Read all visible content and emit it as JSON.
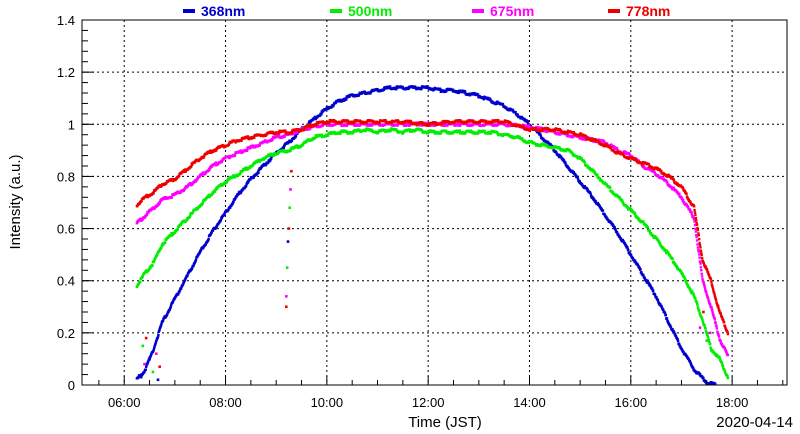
{
  "chart_data": {
    "type": "scatter",
    "title": "",
    "xlabel": "Time (JST)",
    "ylabel": "Intensity (a.u.)",
    "date_label": "2020-04-14",
    "xlim": [
      "05:10",
      "19:05"
    ],
    "ylim": [
      0,
      1.4
    ],
    "x_ticks": [
      "06:00",
      "08:00",
      "10:00",
      "12:00",
      "14:00",
      "16:00",
      "18:00"
    ],
    "y_ticks": [
      "0",
      "0.2",
      "0.4",
      "0.6",
      "0.8",
      "1",
      "1.2",
      "1.4"
    ],
    "grid": true,
    "legend_position": "top",
    "series": [
      {
        "name": "368nm",
        "color": "#0000cc",
        "points": [
          [
            "06:15",
            0.02
          ],
          [
            "06:25",
            0.06
          ],
          [
            "06:35",
            0.14
          ],
          [
            "06:45",
            0.24
          ],
          [
            "07:00",
            0.33
          ],
          [
            "07:15",
            0.42
          ],
          [
            "07:30",
            0.51
          ],
          [
            "07:45",
            0.59
          ],
          [
            "08:00",
            0.66
          ],
          [
            "08:15",
            0.73
          ],
          [
            "08:30",
            0.79
          ],
          [
            "08:45",
            0.84
          ],
          [
            "09:00",
            0.89
          ],
          [
            "09:15",
            0.93
          ],
          [
            "09:30",
            0.98
          ],
          [
            "09:45",
            1.02
          ],
          [
            "10:00",
            1.06
          ],
          [
            "10:15",
            1.09
          ],
          [
            "10:30",
            1.11
          ],
          [
            "10:45",
            1.12
          ],
          [
            "11:00",
            1.13
          ],
          [
            "11:15",
            1.14
          ],
          [
            "11:30",
            1.14
          ],
          [
            "11:45",
            1.14
          ],
          [
            "12:00",
            1.14
          ],
          [
            "12:15",
            1.13
          ],
          [
            "12:30",
            1.13
          ],
          [
            "12:45",
            1.12
          ],
          [
            "13:00",
            1.11
          ],
          [
            "13:15",
            1.09
          ],
          [
            "13:30",
            1.07
          ],
          [
            "13:45",
            1.04
          ],
          [
            "14:00",
            1.0
          ],
          [
            "14:15",
            0.95
          ],
          [
            "14:30",
            0.9
          ],
          [
            "14:45",
            0.84
          ],
          [
            "15:00",
            0.78
          ],
          [
            "15:15",
            0.72
          ],
          [
            "15:30",
            0.65
          ],
          [
            "15:45",
            0.58
          ],
          [
            "16:00",
            0.5
          ],
          [
            "16:15",
            0.42
          ],
          [
            "16:30",
            0.34
          ],
          [
            "16:45",
            0.24
          ],
          [
            "17:00",
            0.14
          ],
          [
            "17:15",
            0.06
          ],
          [
            "17:30",
            0.01
          ],
          [
            "17:40",
            0.0
          ]
        ]
      },
      {
        "name": "500nm",
        "color": "#00ee00",
        "points": [
          [
            "06:15",
            0.38
          ],
          [
            "06:25",
            0.43
          ],
          [
            "06:35",
            0.47
          ],
          [
            "06:45",
            0.54
          ],
          [
            "07:00",
            0.59
          ],
          [
            "07:15",
            0.64
          ],
          [
            "07:30",
            0.69
          ],
          [
            "07:45",
            0.74
          ],
          [
            "08:00",
            0.78
          ],
          [
            "08:15",
            0.81
          ],
          [
            "08:30",
            0.84
          ],
          [
            "08:45",
            0.87
          ],
          [
            "09:00",
            0.89
          ],
          [
            "09:15",
            0.9
          ],
          [
            "09:30",
            0.92
          ],
          [
            "09:45",
            0.95
          ],
          [
            "10:00",
            0.96
          ],
          [
            "10:15",
            0.97
          ],
          [
            "10:30",
            0.97
          ],
          [
            "10:45",
            0.98
          ],
          [
            "11:00",
            0.97
          ],
          [
            "11:15",
            0.98
          ],
          [
            "11:30",
            0.97
          ],
          [
            "11:45",
            0.98
          ],
          [
            "12:00",
            0.97
          ],
          [
            "12:15",
            0.97
          ],
          [
            "12:30",
            0.97
          ],
          [
            "12:45",
            0.97
          ],
          [
            "13:00",
            0.97
          ],
          [
            "13:15",
            0.97
          ],
          [
            "13:30",
            0.96
          ],
          [
            "13:45",
            0.95
          ],
          [
            "14:00",
            0.93
          ],
          [
            "14:15",
            0.92
          ],
          [
            "14:30",
            0.91
          ],
          [
            "14:45",
            0.9
          ],
          [
            "15:00",
            0.87
          ],
          [
            "15:15",
            0.82
          ],
          [
            "15:30",
            0.77
          ],
          [
            "15:45",
            0.72
          ],
          [
            "16:00",
            0.67
          ],
          [
            "16:15",
            0.62
          ],
          [
            "16:30",
            0.56
          ],
          [
            "16:45",
            0.5
          ],
          [
            "17:00",
            0.43
          ],
          [
            "17:15",
            0.34
          ],
          [
            "17:25",
            0.25
          ],
          [
            "17:35",
            0.14
          ],
          [
            "17:45",
            0.1
          ],
          [
            "17:55",
            0.03
          ]
        ]
      },
      {
        "name": "675nm",
        "color": "#ff00ff",
        "points": [
          [
            "06:15",
            0.62
          ],
          [
            "06:25",
            0.65
          ],
          [
            "06:35",
            0.68
          ],
          [
            "06:45",
            0.71
          ],
          [
            "07:00",
            0.73
          ],
          [
            "07:15",
            0.76
          ],
          [
            "07:30",
            0.8
          ],
          [
            "07:45",
            0.84
          ],
          [
            "08:00",
            0.87
          ],
          [
            "08:15",
            0.89
          ],
          [
            "08:30",
            0.91
          ],
          [
            "08:45",
            0.93
          ],
          [
            "09:00",
            0.95
          ],
          [
            "09:15",
            0.96
          ],
          [
            "09:30",
            0.98
          ],
          [
            "09:45",
            0.99
          ],
          [
            "10:00",
            1.0
          ],
          [
            "10:30",
            1.0
          ],
          [
            "11:00",
            1.0
          ],
          [
            "11:30",
            1.0
          ],
          [
            "12:00",
            1.0
          ],
          [
            "12:30",
            1.0
          ],
          [
            "13:00",
            1.0
          ],
          [
            "13:30",
            1.0
          ],
          [
            "14:00",
            0.99
          ],
          [
            "14:15",
            0.98
          ],
          [
            "14:30",
            0.97
          ],
          [
            "14:45",
            0.96
          ],
          [
            "15:00",
            0.95
          ],
          [
            "15:15",
            0.94
          ],
          [
            "15:30",
            0.93
          ],
          [
            "15:45",
            0.9
          ],
          [
            "16:00",
            0.88
          ],
          [
            "16:15",
            0.84
          ],
          [
            "16:30",
            0.81
          ],
          [
            "16:45",
            0.77
          ],
          [
            "17:00",
            0.72
          ],
          [
            "17:15",
            0.64
          ],
          [
            "17:25",
            0.4
          ],
          [
            "17:35",
            0.3
          ],
          [
            "17:45",
            0.18
          ],
          [
            "17:55",
            0.11
          ]
        ]
      },
      {
        "name": "778nm",
        "color": "#ee0000",
        "points": [
          [
            "06:15",
            0.69
          ],
          [
            "06:25",
            0.72
          ],
          [
            "06:35",
            0.74
          ],
          [
            "06:45",
            0.77
          ],
          [
            "07:00",
            0.79
          ],
          [
            "07:15",
            0.83
          ],
          [
            "07:30",
            0.87
          ],
          [
            "07:45",
            0.9
          ],
          [
            "08:00",
            0.92
          ],
          [
            "08:15",
            0.94
          ],
          [
            "08:30",
            0.95
          ],
          [
            "08:45",
            0.96
          ],
          [
            "09:00",
            0.97
          ],
          [
            "09:15",
            0.97
          ],
          [
            "09:30",
            0.98
          ],
          [
            "09:45",
            1.0
          ],
          [
            "10:00",
            1.01
          ],
          [
            "10:30",
            1.01
          ],
          [
            "11:00",
            1.01
          ],
          [
            "11:30",
            1.01
          ],
          [
            "12:00",
            1.0
          ],
          [
            "12:30",
            1.01
          ],
          [
            "13:00",
            1.01
          ],
          [
            "13:30",
            1.01
          ],
          [
            "14:00",
            0.98
          ],
          [
            "14:15",
            0.98
          ],
          [
            "14:30",
            0.98
          ],
          [
            "14:45",
            0.97
          ],
          [
            "15:00",
            0.96
          ],
          [
            "15:15",
            0.94
          ],
          [
            "15:30",
            0.92
          ],
          [
            "15:45",
            0.89
          ],
          [
            "16:00",
            0.87
          ],
          [
            "16:15",
            0.85
          ],
          [
            "16:30",
            0.83
          ],
          [
            "16:45",
            0.8
          ],
          [
            "17:00",
            0.76
          ],
          [
            "17:15",
            0.68
          ],
          [
            "17:25",
            0.48
          ],
          [
            "17:35",
            0.4
          ],
          [
            "17:45",
            0.28
          ],
          [
            "17:55",
            0.2
          ]
        ]
      }
    ],
    "dropout_points": [
      [
        "06:20",
        0.03,
        "#0000cc"
      ],
      [
        "06:22",
        0.15,
        "#00ee00"
      ],
      [
        "06:24",
        0.08,
        "#ff00ff"
      ],
      [
        "06:26",
        0.18,
        "#ee0000"
      ],
      [
        "06:30",
        0.1,
        "#0000cc"
      ],
      [
        "06:34",
        0.05,
        "#00ee00"
      ],
      [
        "06:38",
        0.12,
        "#ff00ff"
      ],
      [
        "06:40",
        0.02,
        "#0000cc"
      ],
      [
        "06:42",
        0.07,
        "#ee0000"
      ],
      [
        "09:12",
        0.3,
        "#ee0000"
      ],
      [
        "09:12",
        0.34,
        "#ff00ff"
      ],
      [
        "09:13",
        0.45,
        "#00ee00"
      ],
      [
        "09:14",
        0.55,
        "#0000cc"
      ],
      [
        "09:15",
        0.6,
        "#ee0000"
      ],
      [
        "09:16",
        0.68,
        "#00ee00"
      ],
      [
        "09:17",
        0.75,
        "#ff00ff"
      ],
      [
        "09:18",
        0.82,
        "#ee0000"
      ],
      [
        "17:22",
        0.22,
        "#ff00ff"
      ],
      [
        "17:26",
        0.28,
        "#ee0000"
      ],
      [
        "17:30",
        0.17,
        "#00ee00"
      ],
      [
        "17:34",
        0.2,
        "#ff00ff"
      ]
    ]
  }
}
